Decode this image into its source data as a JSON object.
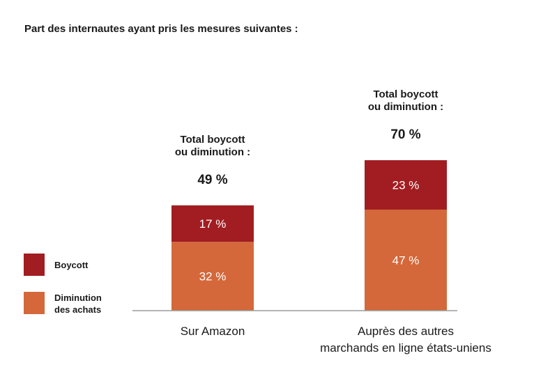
{
  "page": {
    "title": "Part des internautes ayant pris les mesures suivantes :"
  },
  "legend": [
    {
      "label": "Boycott",
      "color": "#a11d21"
    },
    {
      "label": "Diminution\ndes achats",
      "color": "#d4683a"
    }
  ],
  "chart_data": {
    "type": "bar",
    "stacked": true,
    "title": "Part des internautes ayant pris les mesures suivantes :",
    "categories": [
      "Sur Amazon",
      "Auprès des autres\nmarchands en ligne états-uniens"
    ],
    "series": [
      {
        "name": "Diminution des achats",
        "color": "#d4683a",
        "values": [
          32,
          47
        ],
        "labels": [
          "32 %",
          "47 %"
        ]
      },
      {
        "name": "Boycott",
        "color": "#a11d21",
        "values": [
          17,
          23
        ],
        "labels": [
          "17 %",
          "23 %"
        ]
      }
    ],
    "totals": [
      {
        "caption": "Total boycott\nou diminution :",
        "value": 49,
        "label": "49 %"
      },
      {
        "caption": "Total boycott\nou diminution :",
        "value": 70,
        "label": "70 %"
      }
    ],
    "xlabel": "",
    "ylabel": "",
    "ylim": [
      0,
      70
    ],
    "grid": false,
    "legend_position": "left"
  }
}
